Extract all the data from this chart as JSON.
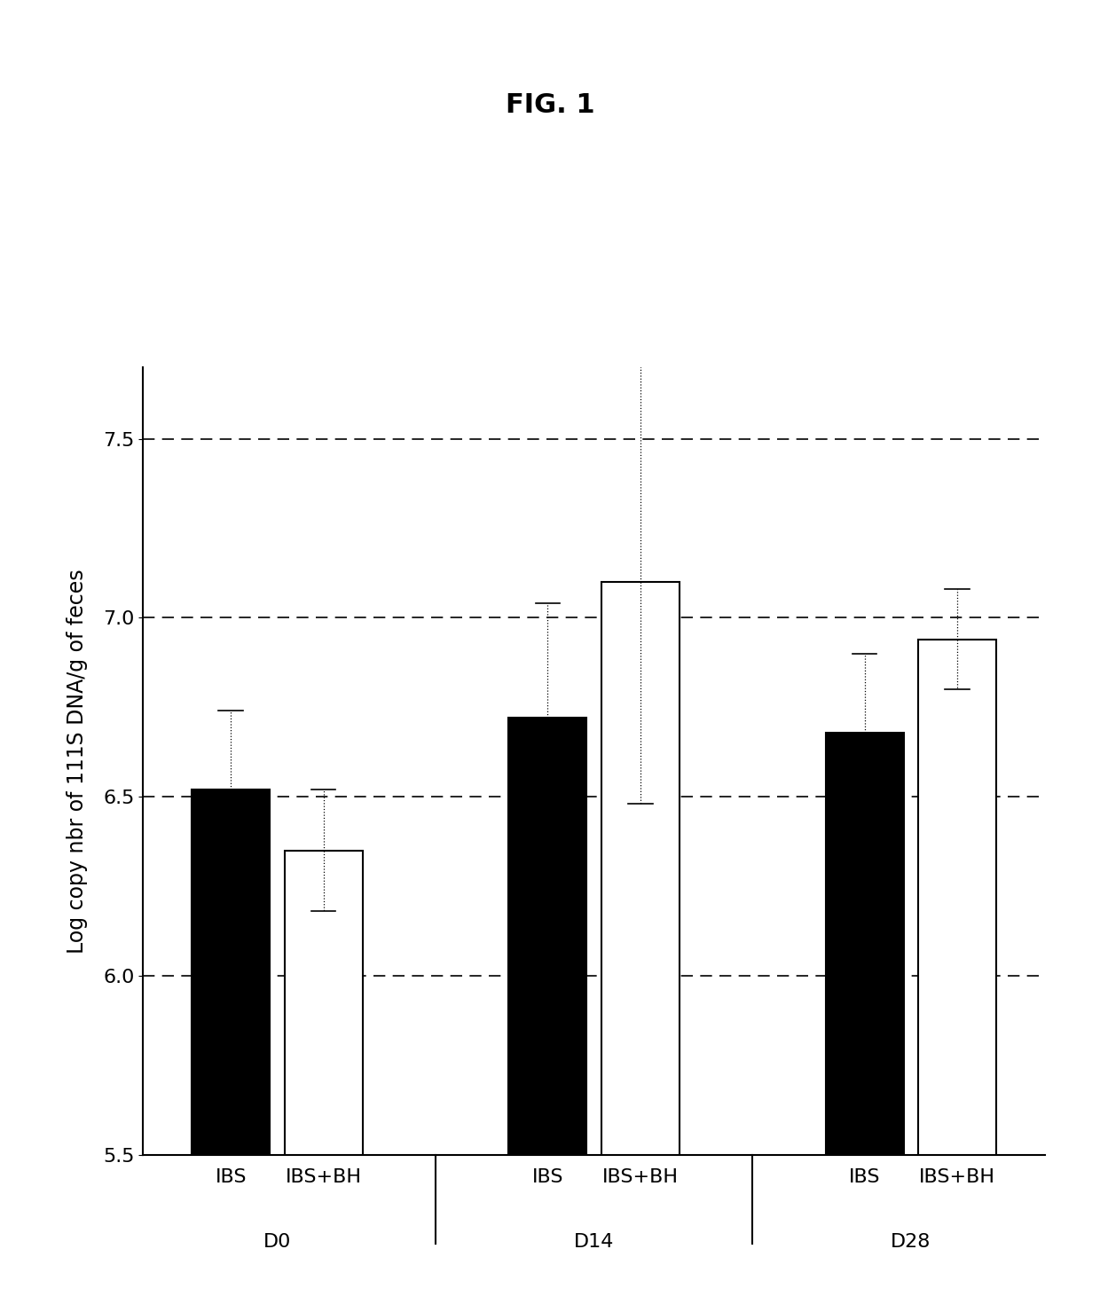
{
  "title": "FIG. 1",
  "ylabel": "Log copy nbr of 111S DNA/g of feces",
  "groups": [
    "D0",
    "D14",
    "D28"
  ],
  "subgroups": [
    "IBS",
    "IBS+BH"
  ],
  "bar_values": {
    "D0": [
      6.52,
      6.35
    ],
    "D14": [
      6.72,
      7.1
    ],
    "D28": [
      6.68,
      6.94
    ]
  },
  "bar_errors": {
    "D0": [
      0.22,
      0.17
    ],
    "D14": [
      0.32,
      0.62
    ],
    "D28": [
      0.22,
      0.14
    ]
  },
  "bar_colors": [
    "black",
    "white"
  ],
  "bar_edgecolor": "black",
  "ylim": [
    5.5,
    7.7
  ],
  "yticks": [
    5.5,
    6.0,
    6.5,
    7.0,
    7.5
  ],
  "background_color": "white",
  "title_fontsize": 22,
  "ylabel_fontsize": 17,
  "tick_fontsize": 16,
  "group_label_fontsize": 16,
  "bar_width": 0.32,
  "group_centers": [
    0.55,
    1.85,
    3.15
  ]
}
